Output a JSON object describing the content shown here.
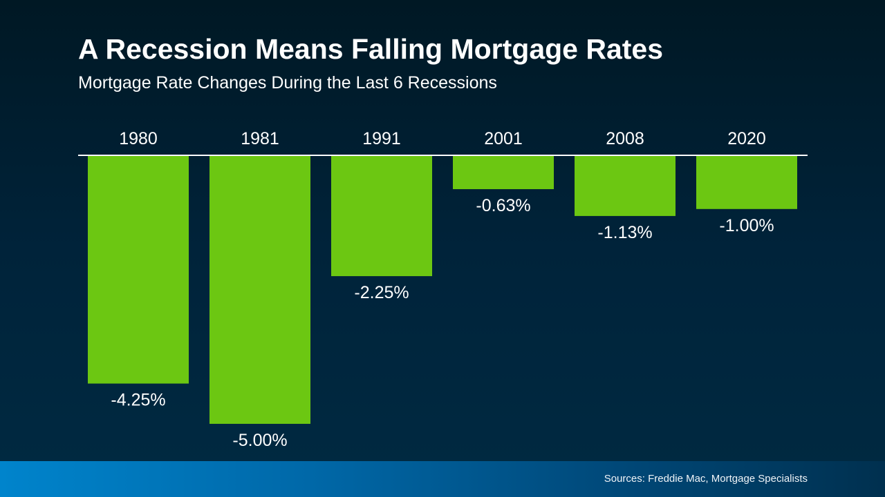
{
  "title": "A Recession Means Falling Mortgage Rates",
  "subtitle": "Mortgage Rate Changes During the Last 6 Recessions",
  "source": "Sources: Freddie Mac, Mortgage Specialists",
  "colors": {
    "bar": "#6cc712",
    "background": "#001e30",
    "footer": "#0084cc"
  },
  "chart_data": {
    "type": "bar",
    "categories": [
      "1980",
      "1981",
      "1991",
      "2001",
      "2008",
      "2020"
    ],
    "values": [
      -4.25,
      -5.0,
      -2.25,
      -0.63,
      -1.13,
      -1.0
    ],
    "data_labels": [
      "-4.25%",
      "-5.00%",
      "-2.25%",
      "-0.63%",
      "-1.13%",
      "-1.00%"
    ],
    "xlabel": "",
    "ylabel": "",
    "ylim": [
      -5,
      0
    ],
    "grid": false,
    "category_axis": "top"
  }
}
